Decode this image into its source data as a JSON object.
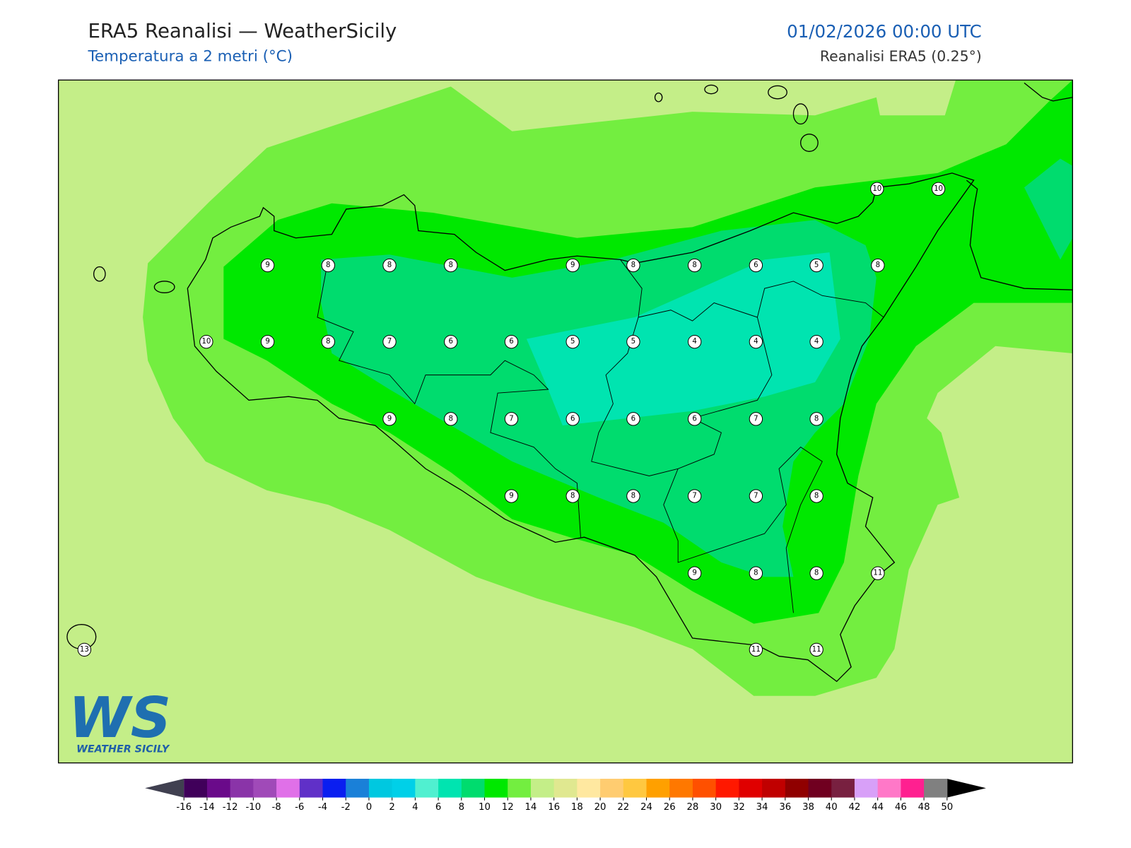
{
  "header": {
    "title": "ERA5 Reanalisi — WeatherSicily",
    "subtitle": "Temperatura a 2 metri (°C)",
    "datetime": "01/02/2026 00:00 UTC",
    "source": "Reanalisi ERA5 (0.25°)"
  },
  "map": {
    "stations": [
      10,
      10,
      9,
      8,
      8,
      8,
      9,
      8,
      8,
      6,
      5,
      8,
      10,
      9,
      8,
      7,
      6,
      6,
      5,
      5,
      4,
      4,
      4,
      9,
      8,
      7,
      6,
      6,
      6,
      7,
      8,
      9,
      8,
      8,
      7,
      7,
      8,
      9,
      8,
      8,
      11,
      13,
      11,
      11
    ]
  },
  "logo": {
    "mark": "WS",
    "name": "WEATHER SICILY"
  },
  "colorbar": {
    "ticks": [
      -16,
      -14,
      -12,
      -10,
      -8,
      -6,
      -4,
      -2,
      0,
      2,
      4,
      6,
      8,
      10,
      12,
      14,
      16,
      18,
      20,
      22,
      24,
      26,
      28,
      30,
      32,
      34,
      36,
      38,
      40,
      42,
      44,
      46,
      48,
      50
    ],
    "colors": [
      "#40005a",
      "#6a0a8a",
      "#8a34a8",
      "#a04ab8",
      "#e070e8",
      "#6030c8",
      "#0a1ef0",
      "#1a80d8",
      "#00c8e0",
      "#00d0e8",
      "#50f0d0",
      "#00e4b0",
      "#00dc6e",
      "#00e800",
      "#73ee40",
      "#c4ee88",
      "#e0e890",
      "#ffe8a0",
      "#ffcc70",
      "#ffc840",
      "#ffa000",
      "#ff7800",
      "#ff5000",
      "#ff1800",
      "#e00000",
      "#c00000",
      "#900000",
      "#700020",
      "#782040",
      "#d8a0f8",
      "#ff78c8",
      "#ff2090",
      "#808080"
    ],
    "under_color": "#404050",
    "over_color": "#000000"
  }
}
